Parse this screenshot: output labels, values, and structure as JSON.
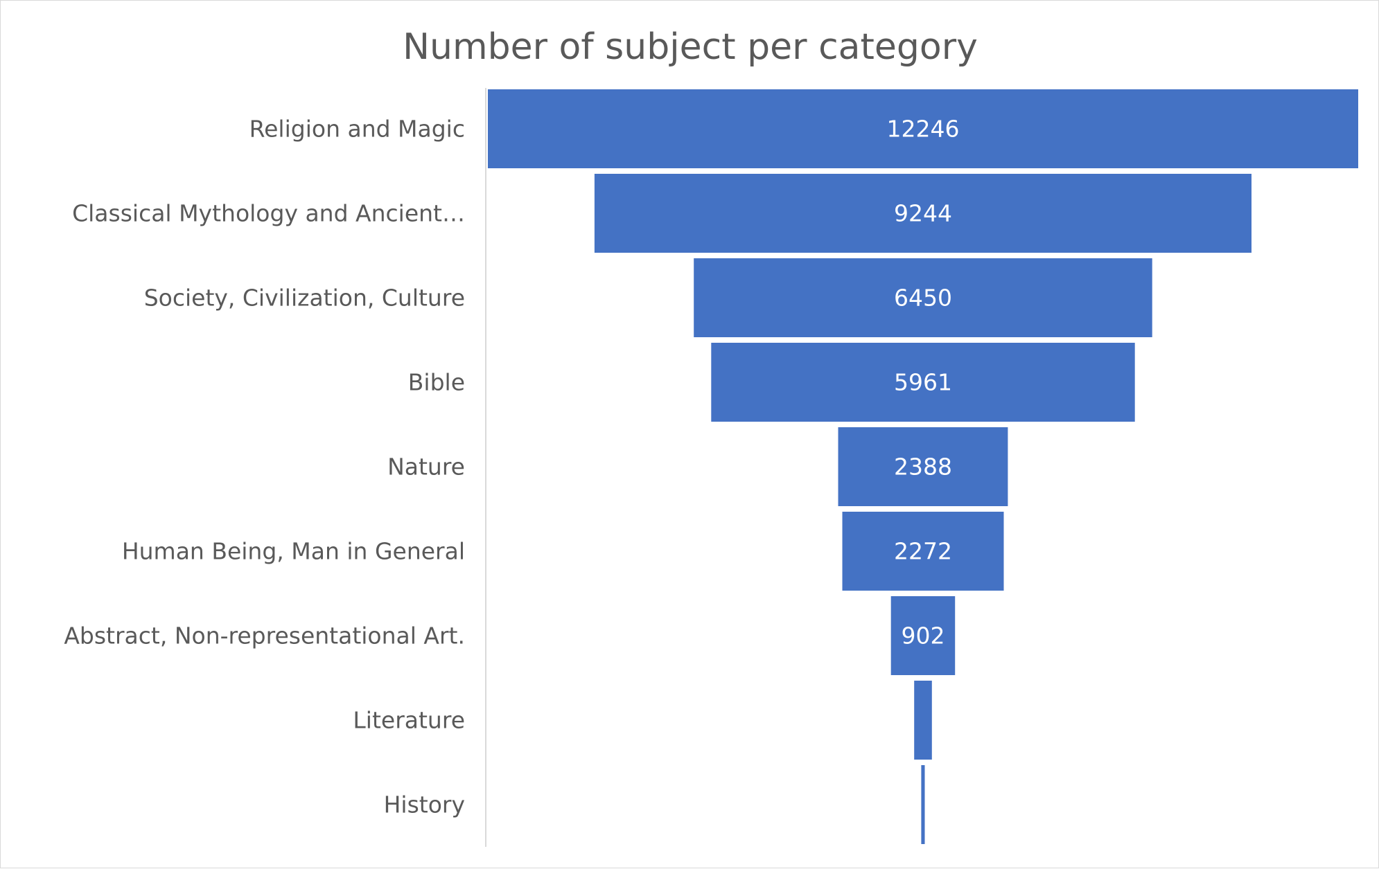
{
  "chart_data": {
    "type": "bar",
    "subtype": "funnel",
    "title": "Number of subject per category",
    "categories": [
      "Religion and Magic",
      "Classical Mythology and Ancient…",
      "Society, Civilization, Culture",
      "Bible",
      "Nature",
      "Human Being, Man in General",
      "Abstract, Non-representational Art.",
      "Literature",
      "History"
    ],
    "values": [
      12246,
      9244,
      6450,
      5961,
      2388,
      2272,
      902,
      250,
      50
    ],
    "data_labels": [
      "12246",
      "9244",
      "6450",
      "5961",
      "2388",
      "2272",
      "902",
      "",
      ""
    ],
    "xlabel": "",
    "ylabel": "",
    "legend": "none",
    "grid": false,
    "bar_color": "#4472C4",
    "label_color": "#595959"
  }
}
